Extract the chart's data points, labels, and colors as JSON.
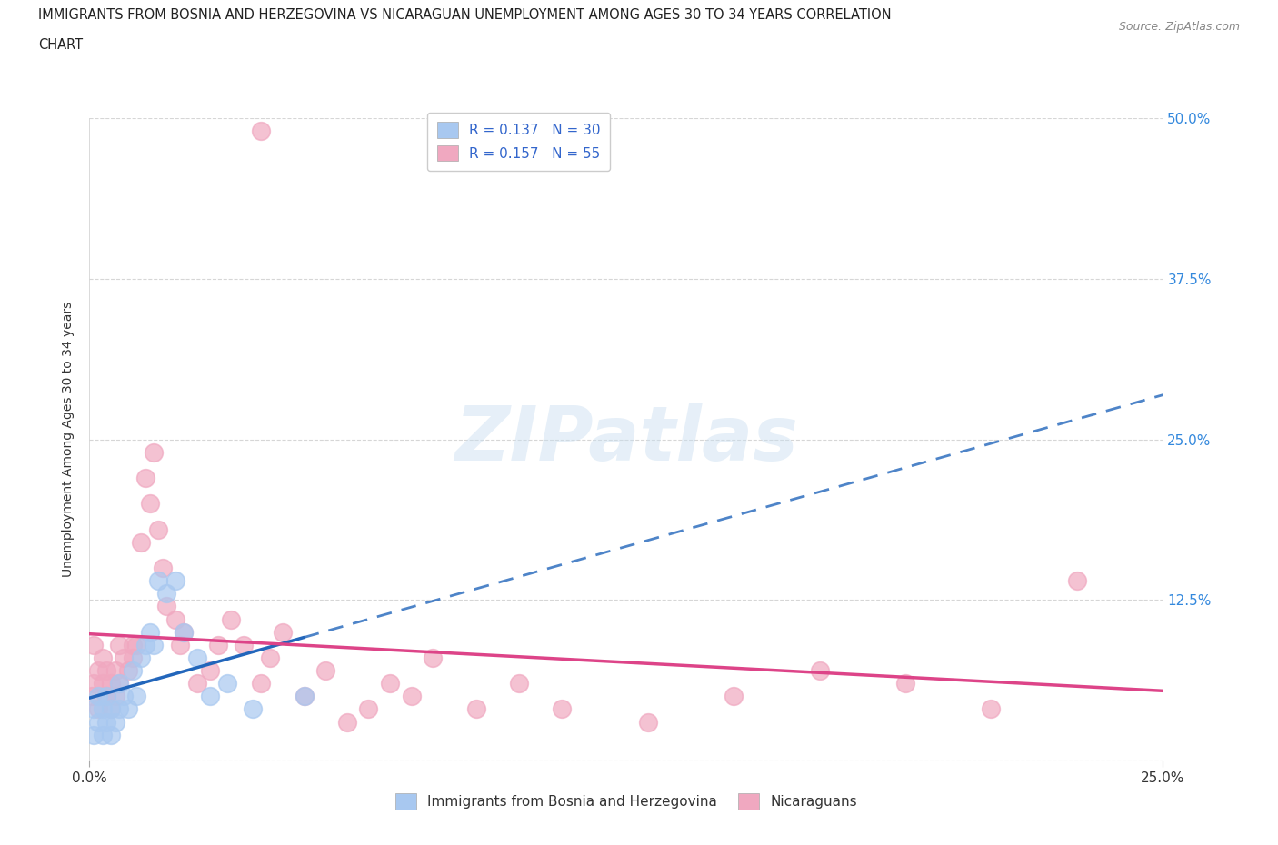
{
  "title_line1": "IMMIGRANTS FROM BOSNIA AND HERZEGOVINA VS NICARAGUAN UNEMPLOYMENT AMONG AGES 30 TO 34 YEARS CORRELATION",
  "title_line2": "CHART",
  "source": "Source: ZipAtlas.com",
  "ylabel": "Unemployment Among Ages 30 to 34 years",
  "xlim": [
    0.0,
    0.25
  ],
  "ylim": [
    0.0,
    0.5
  ],
  "x_ticks": [
    0.0,
    0.25
  ],
  "x_tick_labels": [
    "0.0%",
    "25.0%"
  ],
  "y_ticks": [
    0.0,
    0.125,
    0.25,
    0.375,
    0.5
  ],
  "y_tick_labels": [
    "",
    "12.5%",
    "25.0%",
    "37.5%",
    "50.0%"
  ],
  "grid_color": "#cccccc",
  "background_color": "#ffffff",
  "watermark_text": "ZIPatlas",
  "bosnia_color": "#a8c8f0",
  "nicaragua_color": "#f0a8c0",
  "bosnia_line_color": "#2266bb",
  "nicaragua_line_color": "#dd4488",
  "bosnia_R": 0.137,
  "bosnia_N": 30,
  "nicaragua_R": 0.157,
  "nicaragua_N": 55,
  "legend_label_bosnia": "Immigrants from Bosnia and Herzegovina",
  "legend_label_nicaragua": "Nicaraguans",
  "bosnia_x": [
    0.001,
    0.001,
    0.002,
    0.002,
    0.003,
    0.003,
    0.004,
    0.004,
    0.005,
    0.005,
    0.006,
    0.007,
    0.007,
    0.008,
    0.009,
    0.01,
    0.011,
    0.012,
    0.013,
    0.014,
    0.015,
    0.016,
    0.018,
    0.02,
    0.022,
    0.025,
    0.028,
    0.032,
    0.038,
    0.05
  ],
  "bosnia_y": [
    0.04,
    0.02,
    0.05,
    0.03,
    0.04,
    0.02,
    0.05,
    0.03,
    0.04,
    0.02,
    0.03,
    0.06,
    0.04,
    0.05,
    0.04,
    0.07,
    0.05,
    0.08,
    0.09,
    0.1,
    0.09,
    0.14,
    0.13,
    0.14,
    0.1,
    0.08,
    0.05,
    0.06,
    0.04,
    0.05
  ],
  "nicaragua_x": [
    0.0005,
    0.001,
    0.001,
    0.002,
    0.002,
    0.003,
    0.003,
    0.004,
    0.004,
    0.005,
    0.005,
    0.006,
    0.006,
    0.007,
    0.007,
    0.008,
    0.009,
    0.01,
    0.01,
    0.011,
    0.012,
    0.013,
    0.014,
    0.015,
    0.016,
    0.017,
    0.018,
    0.02,
    0.021,
    0.022,
    0.025,
    0.028,
    0.03,
    0.033,
    0.036,
    0.04,
    0.042,
    0.045,
    0.05,
    0.055,
    0.06,
    0.065,
    0.07,
    0.075,
    0.08,
    0.09,
    0.1,
    0.11,
    0.13,
    0.15,
    0.17,
    0.19,
    0.21,
    0.23,
    0.04
  ],
  "nicaragua_y": [
    0.05,
    0.06,
    0.09,
    0.04,
    0.07,
    0.06,
    0.08,
    0.05,
    0.07,
    0.04,
    0.06,
    0.05,
    0.07,
    0.06,
    0.09,
    0.08,
    0.07,
    0.09,
    0.08,
    0.09,
    0.17,
    0.22,
    0.2,
    0.24,
    0.18,
    0.15,
    0.12,
    0.11,
    0.09,
    0.1,
    0.06,
    0.07,
    0.09,
    0.11,
    0.09,
    0.06,
    0.08,
    0.1,
    0.05,
    0.07,
    0.03,
    0.04,
    0.06,
    0.05,
    0.08,
    0.04,
    0.06,
    0.04,
    0.03,
    0.05,
    0.07,
    0.06,
    0.04,
    0.14,
    0.49
  ]
}
